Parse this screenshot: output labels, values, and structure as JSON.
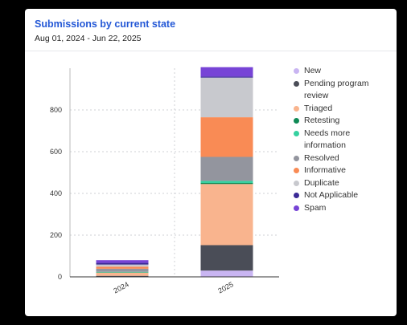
{
  "header": {
    "title": "Submissions by current state",
    "date_range": "Aug 01, 2024 - Jun 22, 2025"
  },
  "chart_data": {
    "type": "bar",
    "stacked": true,
    "title": "Submissions by current state",
    "subtitle": "Aug 01, 2024 - Jun 22, 2025",
    "xlabel": "",
    "ylabel": "",
    "categories": [
      "2024",
      "2025"
    ],
    "ylim": [
      0,
      1000
    ],
    "yticks": [
      0,
      200,
      400,
      600,
      800
    ],
    "grid": true,
    "legend_position": "right",
    "series": [
      {
        "name": "New",
        "color": "#c9b5f2",
        "values": [
          0,
          30
        ]
      },
      {
        "name": "Pending program review",
        "color": "#4a4d57",
        "values": [
          5,
          122
        ]
      },
      {
        "name": "Triaged",
        "color": "#f9b48e",
        "values": [
          15,
          293
        ]
      },
      {
        "name": "Retesting",
        "color": "#0f8a55",
        "values": [
          2,
          5
        ]
      },
      {
        "name": "Needs more information",
        "color": "#36d1a0",
        "values": [
          2,
          10
        ]
      },
      {
        "name": "Resolved",
        "color": "#93959e",
        "values": [
          15,
          115
        ]
      },
      {
        "name": "Informative",
        "color": "#f98b55",
        "values": [
          10,
          190
        ]
      },
      {
        "name": "Duplicate",
        "color": "#c8c9ce",
        "values": [
          10,
          190
        ]
      },
      {
        "name": "Not Applicable",
        "color": "#3b2a96",
        "values": [
          8,
          5
        ]
      },
      {
        "name": "Spam",
        "color": "#7744d6",
        "values": [
          13,
          45
        ]
      }
    ]
  }
}
